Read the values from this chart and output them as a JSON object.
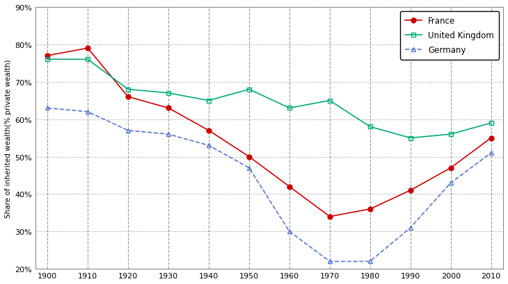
{
  "years": [
    1900,
    1910,
    1920,
    1930,
    1940,
    1950,
    1960,
    1970,
    1980,
    1990,
    2000,
    2010
  ],
  "france": [
    0.77,
    0.79,
    0.66,
    0.63,
    0.57,
    0.5,
    0.42,
    0.34,
    0.36,
    0.41,
    0.47,
    0.55
  ],
  "uk": [
    0.76,
    0.76,
    0.68,
    0.67,
    0.65,
    0.68,
    0.63,
    0.65,
    0.58,
    0.55,
    0.56,
    0.59
  ],
  "germany": [
    0.63,
    0.62,
    0.57,
    0.56,
    0.53,
    0.47,
    0.3,
    0.22,
    0.22,
    0.31,
    0.43,
    0.51
  ],
  "france_color": "#cc0000",
  "uk_color": "#00aa77",
  "germany_color": "#5577cc",
  "france_label": "France",
  "uk_label": "United Kingdom",
  "germany_label": "Germany",
  "ylabel": "Share of inherited wealth(% private wealth)",
  "ylim": [
    0.2,
    0.9
  ],
  "yticks": [
    0.2,
    0.3,
    0.4,
    0.5,
    0.6,
    0.7,
    0.8,
    0.9
  ],
  "xticks": [
    1900,
    1910,
    1920,
    1930,
    1940,
    1950,
    1960,
    1970,
    1980,
    1990,
    2000,
    2010
  ],
  "grid_color": "#999999",
  "background_color": "#ffffff"
}
